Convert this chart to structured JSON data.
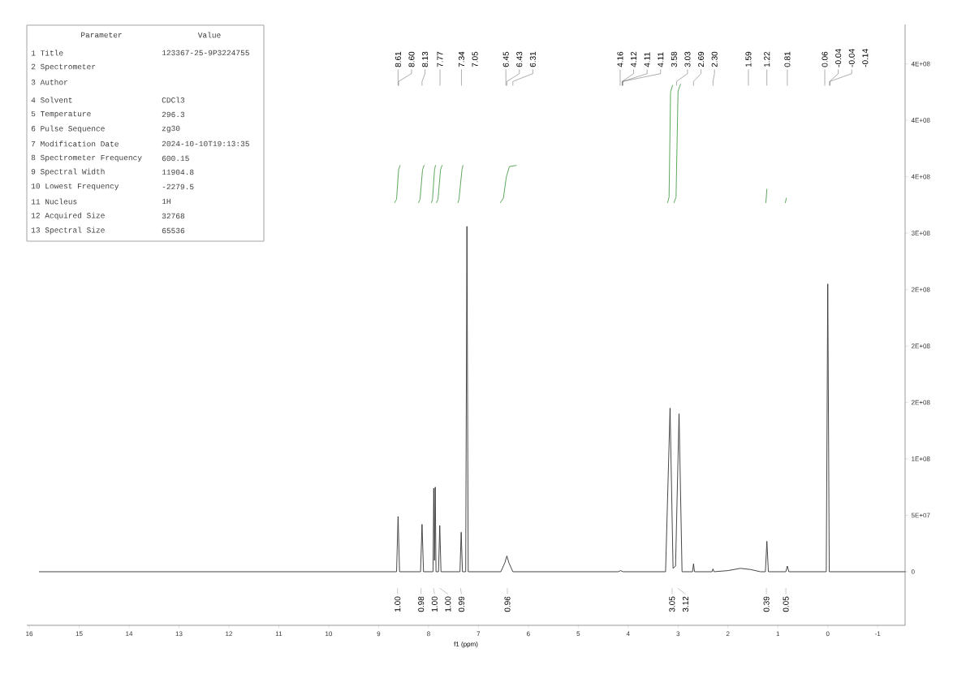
{
  "chart_data": {
    "type": "line",
    "xlabel": "f1 (ppm)",
    "xlim": [
      16.05,
      -1.55
    ],
    "ylim": [
      -47500000,
      485000000
    ],
    "xticks": [
      16,
      15,
      14,
      13,
      12,
      11,
      10,
      9,
      8,
      7,
      6,
      5,
      4,
      3,
      2,
      1,
      0,
      -1
    ],
    "yticks": [
      0,
      {
        "value": 50000000,
        "label": "5E+07"
      },
      {
        "value": 100000000,
        "label": "1E+08"
      },
      {
        "value": 150000000,
        "label": "2E+08"
      },
      {
        "value": 200000000,
        "label": "2E+08"
      },
      {
        "value": 250000000,
        "label": "2E+08"
      },
      {
        "value": 300000000,
        "label": "3E+08"
      },
      {
        "value": 350000000,
        "label": "4E+08"
      },
      {
        "value": 400000000,
        "label": "4E+08"
      },
      {
        "value": 450000000,
        "label": "4E+08"
      }
    ],
    "tick_labels": "xy",
    "series": [
      {
        "color": "#333333",
        "x": [
          15.8,
          8.64,
          8.61,
          8.58,
          8.16,
          8.13,
          8.1,
          7.91,
          7.895,
          7.88,
          7.865,
          7.85,
          7.8,
          7.775,
          7.75,
          7.37,
          7.345,
          7.32,
          7.255,
          7.23,
          7.205,
          6.55,
          6.47,
          6.43,
          6.39,
          6.31,
          4.2,
          4.15,
          4.1,
          3.25,
          3.16,
          3.1,
          3.05,
          2.98,
          2.92,
          2.71,
          2.69,
          2.67,
          2.32,
          2.3,
          2.28,
          2.0,
          1.75,
          1.55,
          1.35,
          1.25,
          1.22,
          1.19,
          0.84,
          0.81,
          0.78,
          0.03,
          0.0,
          -0.03,
          -1.55
        ],
        "values": [
          0,
          0,
          49000000,
          0,
          0,
          42000000,
          0,
          0,
          74000000,
          10000000,
          75000000,
          0,
          0,
          41000000,
          0,
          0,
          35000000,
          0,
          0,
          306000000,
          0,
          0,
          8000000,
          14000000,
          8000000,
          0,
          0,
          1000000,
          0,
          0,
          145000000,
          3000000,
          5000000,
          140000000,
          0,
          0,
          7000000,
          0,
          0,
          2500000,
          0,
          1000000,
          3000000,
          2000000,
          0,
          0,
          27000000,
          0,
          0,
          5000000,
          0,
          0,
          255000000,
          0,
          0
        ]
      },
      {
        "color": "#4d9e4d",
        "x": [
          8.68,
          8.64,
          8.6,
          8.57,
          8.4,
          8.2,
          8.17,
          8.12,
          8.09,
          8.0,
          7.94,
          7.92,
          7.88,
          7.86,
          7.85,
          7.84,
          7.81,
          7.76,
          7.73,
          7.6,
          7.41,
          7.39,
          7.33,
          7.31,
          7.0,
          6.56,
          6.5,
          6.44,
          6.38,
          6.24,
          5.0,
          3.21,
          3.18,
          3.15,
          3.11,
          3.09,
          3.08,
          3.04,
          3.0,
          2.95,
          2.0,
          1.24,
          1.22,
          1.0,
          0.85,
          0.83
        ],
        "values": [
          327000000,
          330000000,
          356000000,
          360000000,
          null,
          327000000,
          330000000,
          356000000,
          360000000,
          null,
          327000000,
          330000000,
          356000000,
          360000000,
          null,
          327000000,
          330000000,
          356000000,
          360000000,
          null,
          327000000,
          330000000,
          356000000,
          360000000,
          null,
          327000000,
          331000000,
          350000000,
          359000000,
          360000000,
          null,
          327000000,
          332000000,
          425000000,
          431000000,
          null,
          327000000,
          332000000,
          426000000,
          432000000,
          null,
          327000000,
          339000000,
          null,
          327000000,
          331000000
        ]
      }
    ],
    "annotations": [
      "Parameter",
      "Value",
      "1 Title",
      "123367-25-9P3224755",
      "2 Spectrometer",
      "3 Author",
      "4 Solvent",
      "CDCl3",
      "5 Temperature",
      "296.3",
      "6 Pulse Sequence",
      "zg30",
      "7 Modification Date",
      "2024-10-10T19:13:35",
      "8 Spectrometer Frequency",
      "600.15",
      "9 Spectral Width",
      "11904.8",
      "10 Lowest Frequency",
      "-2279.5",
      "11 Nucleus",
      "1H",
      "12 Acquired Size",
      "32768",
      "13 Spectral Size",
      "65536",
      {
        "text": "8.61",
        "x": 8.61
      },
      {
        "text": "8.60",
        "x": 8.6
      },
      {
        "text": "8.13",
        "x": 8.13
      },
      {
        "text": "7.77",
        "x": 7.77
      },
      {
        "text": "7.34",
        "x": 7.34
      },
      "7.05",
      {
        "text": "6.45",
        "x": 6.45
      },
      {
        "text": "6.43",
        "x": 6.43
      },
      {
        "text": "6.31",
        "x": 6.31
      },
      {
        "text": "4.16",
        "x": 4.16
      },
      {
        "text": "4.12",
        "x": 4.12
      },
      {
        "text": "4.11",
        "x": 4.11
      },
      {
        "text": "4.11",
        "x": 4.11
      },
      "3.58",
      {
        "text": "3.03",
        "x": 3.03
      },
      {
        "text": "2.69",
        "x": 2.69
      },
      {
        "text": "2.30",
        "x": 2.3
      },
      {
        "text": "1.59",
        "x": 1.59
      },
      {
        "text": "1.22",
        "x": 1.22
      },
      {
        "text": "0.81",
        "x": 0.81
      },
      {
        "text": "0.06",
        "x": 0.06
      },
      {
        "text": "-0.04",
        "x": -0.04
      },
      {
        "text": "-0.04",
        "x": -0.04
      },
      "-0.14",
      {
        "text": "1.00",
        "x": 8.62
      },
      {
        "text": "0.98",
        "x": 8.15
      },
      {
        "text": "1.00",
        "x": 7.9
      },
      {
        "text": "1.00",
        "x": 7.78
      },
      {
        "text": "0.99",
        "x": 7.36
      },
      {
        "text": "0.96",
        "x": 6.42
      },
      {
        "text": "3.05",
        "x": 3.12
      },
      {
        "text": "3.12",
        "x": 3.01
      },
      {
        "text": "0.39",
        "x": 1.23
      },
      {
        "text": "0.05",
        "x": 0.84
      }
    ]
  }
}
